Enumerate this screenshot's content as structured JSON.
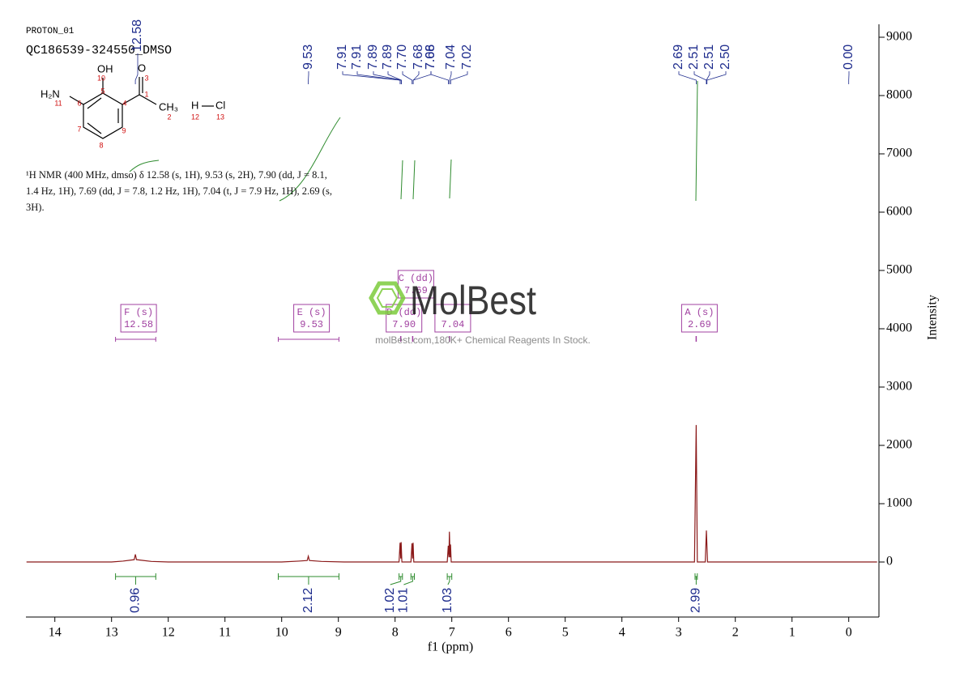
{
  "header": {
    "experiment": "PROTON_01",
    "sample": "QC186539-324550_DMSO"
  },
  "structure": {
    "atoms": [
      "OH",
      "O",
      "H₂N",
      "CH₃",
      "H",
      "Cl"
    ],
    "numbers": [
      1,
      2,
      3,
      4,
      5,
      6,
      7,
      8,
      9,
      10,
      11,
      12,
      13
    ]
  },
  "description": "¹H NMR (400 MHz, dmso) δ 12.58 (s, 1H), 9.53 (s, 2H), 7.90 (dd, J = 8.1, 1.4 Hz, 1H), 7.69 (dd, J = 7.8, 1.2 Hz, 1H), 7.04 (t, J = 7.9 Hz, 1H), 2.69 (s, 3H).",
  "watermark": {
    "brand": "MolBest",
    "tagline": "molBest.com,180K+ Chemical Reagents In Stock."
  },
  "chart_data": {
    "type": "line",
    "x_label": "f1 (ppm)",
    "y_label": "Intensity",
    "xlim": [
      14.51,
      -0.49
    ],
    "ylim": [
      -944,
      9222
    ],
    "xticks": [
      14,
      13,
      12,
      11,
      10,
      9,
      8,
      7,
      6,
      5,
      4,
      3,
      2,
      1,
      0
    ],
    "yticks": [
      0,
      1000,
      2000,
      3000,
      4000,
      5000,
      6000,
      7000,
      8000,
      9000
    ],
    "series": [
      {
        "color": "#8b1a1a",
        "x": [
          14.5,
          13.0,
          12.8,
          12.6,
          12.58,
          12.56,
          12.3,
          12.0,
          10.0,
          9.7,
          9.55,
          9.53,
          9.51,
          9.3,
          8.9,
          7.93,
          7.912,
          7.9,
          7.893,
          7.88,
          7.72,
          7.702,
          7.69,
          7.682,
          7.67,
          7.08,
          7.062,
          7.05,
          7.042,
          7.03,
          7.022,
          7.01,
          2.72,
          2.69,
          2.67,
          2.53,
          2.51,
          2.49,
          -0.5
        ],
        "values": [
          0,
          0,
          15,
          40,
          130,
          40,
          10,
          0,
          0,
          15,
          25,
          100,
          25,
          10,
          0,
          0,
          330,
          60,
          340,
          0,
          0,
          320,
          60,
          330,
          0,
          0,
          280,
          80,
          520,
          80,
          300,
          0,
          0,
          2350,
          0,
          0,
          540,
          0,
          0
        ]
      }
    ],
    "peak_labels": [
      12.58,
      9.53,
      7.91,
      7.91,
      7.89,
      7.89,
      {
        "value": 7.7,
        "label": "7.70"
      },
      7.68,
      7.68,
      7.06,
      7.04,
      7.02,
      2.69,
      2.51,
      2.51,
      {
        "value": 2.5,
        "label": "2.50"
      },
      {
        "value": 0,
        "label": "0.00"
      }
    ],
    "multiplets": [
      {
        "name": "F (s)",
        "shift": 12.58,
        "range": [
          12.93,
          12.22
        ]
      },
      {
        "name": "E (s)",
        "shift": 9.53,
        "range": [
          10.06,
          8.99
        ]
      },
      {
        "name": "D (dd)",
        "shift": {
          "value": 7.9,
          "label": "7.90"
        }
      },
      {
        "name": "C (dd)",
        "shift": 7.69
      },
      {
        "shift": 7.04
      },
      {
        "name": "A (s)",
        "shift": 2.69
      }
    ],
    "integrals": [
      {
        "value": 0.96,
        "range": [
          12.93,
          12.22
        ]
      },
      {
        "value": 2.12,
        "range": [
          10.06,
          8.99
        ]
      },
      {
        "value": 1.02,
        "range": [
          7.93,
          7.87
        ]
      },
      {
        "value": 1.01,
        "range": [
          7.72,
          7.66
        ]
      },
      {
        "value": 1.03,
        "range": [
          7.08,
          7.0
        ]
      },
      {
        "value": 2.99,
        "range": [
          2.71,
          2.67
        ]
      }
    ],
    "label_color": "#1c2a8c",
    "integral_color": "#2e8b2e",
    "box_color": "#a040a0"
  }
}
